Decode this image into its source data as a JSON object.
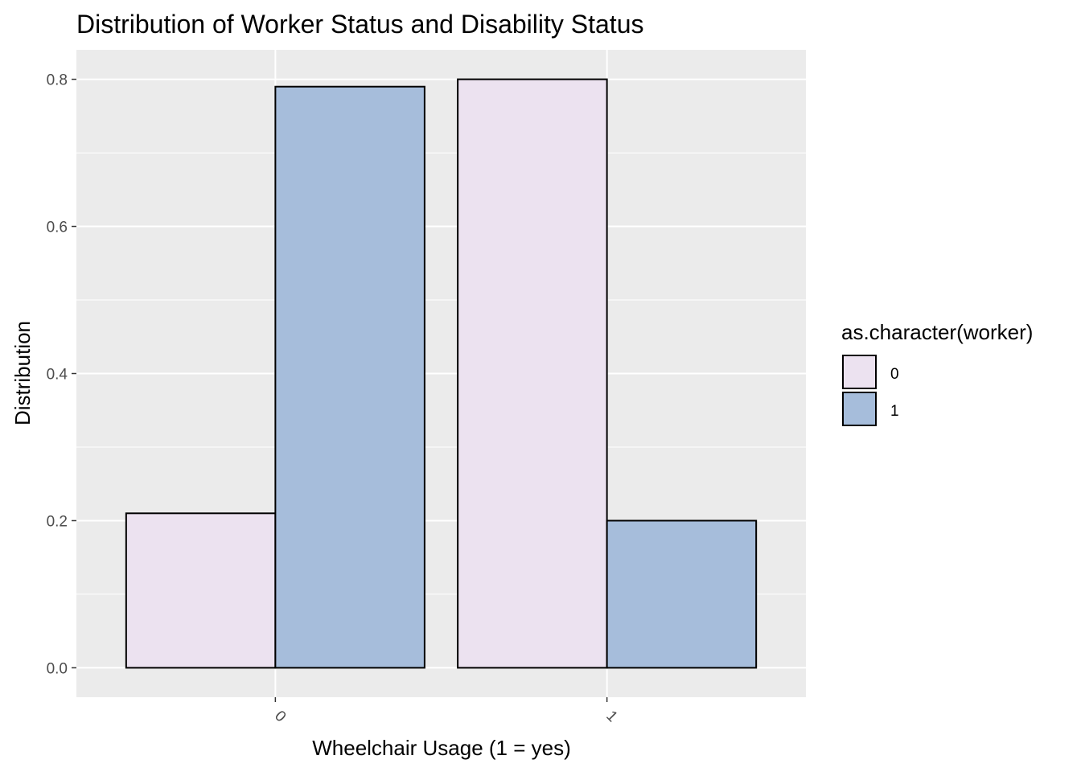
{
  "chart_data": {
    "type": "bar",
    "title": "Distribution of Worker Status and Disability Status",
    "xlabel": "Wheelchair Usage (1 = yes)",
    "ylabel": "Distribution",
    "categories": [
      "0",
      "1"
    ],
    "series": [
      {
        "name": "0",
        "color": "#ECE2F0",
        "values": [
          0.21,
          0.8
        ]
      },
      {
        "name": "1",
        "color": "#A6BDDB",
        "values": [
          0.79,
          0.2
        ]
      }
    ],
    "ylim": [
      -0.04,
      0.84
    ],
    "yticks": [
      "0.0",
      "0.2",
      "0.4",
      "0.6",
      "0.8"
    ],
    "grid": true,
    "legend": {
      "title": "as.character(worker)",
      "placement": "right"
    },
    "panel_color": "#EBEBEB",
    "bar_outline": "#000000"
  }
}
